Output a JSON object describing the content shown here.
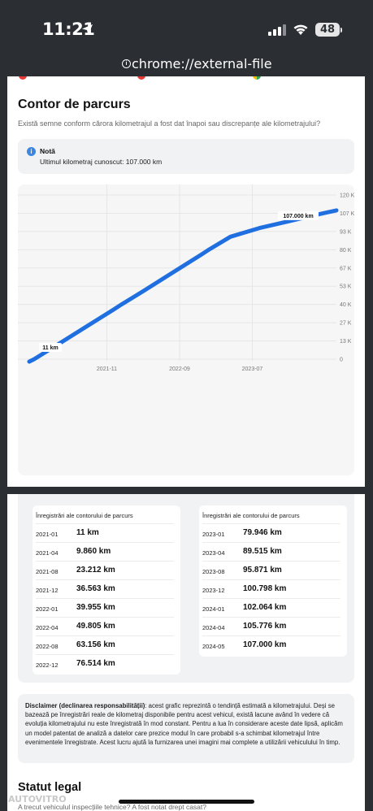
{
  "status_bar": {
    "time": "11:21",
    "battery": "48"
  },
  "url_bar": {
    "url": "chrome://external-file"
  },
  "section": {
    "title": "Contor de parcurs",
    "subtitle": "Există semne conform cărora kilometrajul a fost dat înapoi sau discrepanțe ale kilometrajului?"
  },
  "note": {
    "title": "Notă",
    "text": "Ultimul kilometraj cunoscut: 107.000 km"
  },
  "chart_data": {
    "type": "line",
    "y_ticks": [
      "120 K",
      "107 K",
      "93 K",
      "80 K",
      "67 K",
      "53 K",
      "40 K",
      "27 K",
      "13 K",
      "0"
    ],
    "x_ticks": [
      "2021-11",
      "2022-09",
      "2023-07"
    ],
    "ylim": [
      0,
      120000
    ],
    "grid": true,
    "x": [
      "2021-01",
      "2021-04",
      "2021-08",
      "2021-12",
      "2022-01",
      "2022-04",
      "2022-08",
      "2022-12",
      "2023-01",
      "2023-04",
      "2023-08",
      "2023-12",
      "2024-01",
      "2024-04",
      "2024-05"
    ],
    "series": [
      {
        "values": [
          11,
          9860,
          23212,
          36563,
          39955,
          49805,
          63156,
          76514,
          79946,
          89515,
          95871,
          100798,
          102064,
          105776,
          107000
        ]
      }
    ],
    "annotations": [
      "11 km",
      "107.000 km"
    ],
    "line_color": "#1f6fe0"
  },
  "tables": [
    {
      "title": "Înregistrări ale contorului de parcurs",
      "rows": [
        {
          "date": "2021-01",
          "value": "11 km"
        },
        {
          "date": "2021-04",
          "value": "9.860 km"
        },
        {
          "date": "2021-08",
          "value": "23.212 km"
        },
        {
          "date": "2021-12",
          "value": "36.563 km"
        },
        {
          "date": "2022-01",
          "value": "39.955 km"
        },
        {
          "date": "2022-04",
          "value": "49.805 km"
        },
        {
          "date": "2022-08",
          "value": "63.156 km"
        },
        {
          "date": "2022-12",
          "value": "76.514 km"
        }
      ]
    },
    {
      "title": "Înregistrări ale contorului de parcurs",
      "rows": [
        {
          "date": "2023-01",
          "value": "79.946 km"
        },
        {
          "date": "2023-04",
          "value": "89.515 km"
        },
        {
          "date": "2023-08",
          "value": "95.871 km"
        },
        {
          "date": "2023-12",
          "value": "100.798 km"
        },
        {
          "date": "2024-01",
          "value": "102.064 km"
        },
        {
          "date": "2024-04",
          "value": "105.776 km"
        },
        {
          "date": "2024-05",
          "value": "107.000 km"
        }
      ]
    }
  ],
  "disclaimer": {
    "label": "Disclaimer (declinarea responsabilității)",
    "text": ": acest grafic reprezintă o tendință estimată a kilometrajului. Deși se bazează pe înregistrări reale de kilometraj disponibile pentru acest vehicul, există lacune având în vedere că evoluția kilometrajului nu este înregistrată în mod constant. Pentru a lua în considerare aceste date lipsă, aplicăm un model patentat de analiză a datelor care prezice modul în care probabil s-a schimbat kilometrajul între evenimentele înregistrate. Acest lucru ajută la furnizarea unei imagini mai complete a utilizării vehiculului în timp."
  },
  "legal": {
    "title": "Statut legal",
    "subtitle": "A trecut vehiculul inspecțiile tehnice? A fost notat drept casat?"
  },
  "watermark": "AUTOVITRO"
}
